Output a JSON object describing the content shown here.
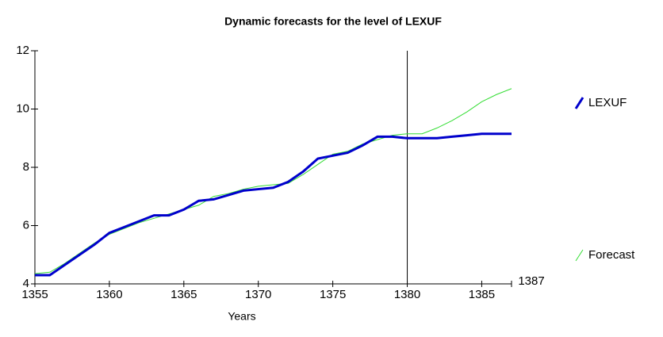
{
  "chart_data": {
    "type": "line",
    "title": "Dynamic forecasts for the level of LEXUF",
    "x_label": "Years",
    "x": [
      1355,
      1356,
      1357,
      1358,
      1359,
      1360,
      1361,
      1362,
      1363,
      1364,
      1365,
      1366,
      1367,
      1368,
      1369,
      1370,
      1371,
      1372,
      1373,
      1374,
      1375,
      1376,
      1377,
      1378,
      1379,
      1380,
      1381,
      1382,
      1383,
      1384,
      1385,
      1386,
      1387
    ],
    "series": [
      {
        "name": "LEXUF",
        "color": "#0000cc",
        "width": 3,
        "values": [
          4.3,
          4.3,
          4.65,
          5.0,
          5.35,
          5.75,
          5.95,
          6.15,
          6.35,
          6.35,
          6.55,
          6.85,
          6.9,
          7.05,
          7.2,
          7.25,
          7.3,
          7.5,
          7.85,
          8.3,
          8.4,
          8.5,
          8.75,
          9.05,
          9.05,
          9.0,
          9.0,
          9.0,
          9.05,
          9.1,
          9.15,
          9.15,
          9.15
        ]
      },
      {
        "name": "Forecast",
        "color": "#33dd33",
        "width": 1,
        "values": [
          4.35,
          4.4,
          4.7,
          5.05,
          5.4,
          5.7,
          5.9,
          6.1,
          6.25,
          6.4,
          6.55,
          6.7,
          7.0,
          7.1,
          7.25,
          7.35,
          7.4,
          7.45,
          7.75,
          8.1,
          8.45,
          8.55,
          8.8,
          8.95,
          9.1,
          9.15,
          9.15,
          9.35,
          9.6,
          9.9,
          10.25,
          10.5,
          10.7
        ]
      }
    ],
    "xlim": [
      1355,
      1387
    ],
    "xticks": [
      1355,
      1360,
      1365,
      1370,
      1375,
      1380,
      1385,
      1387
    ],
    "ylim": [
      4,
      12
    ],
    "yticks": [
      4,
      6,
      8,
      10,
      12
    ],
    "vline": 1380
  }
}
